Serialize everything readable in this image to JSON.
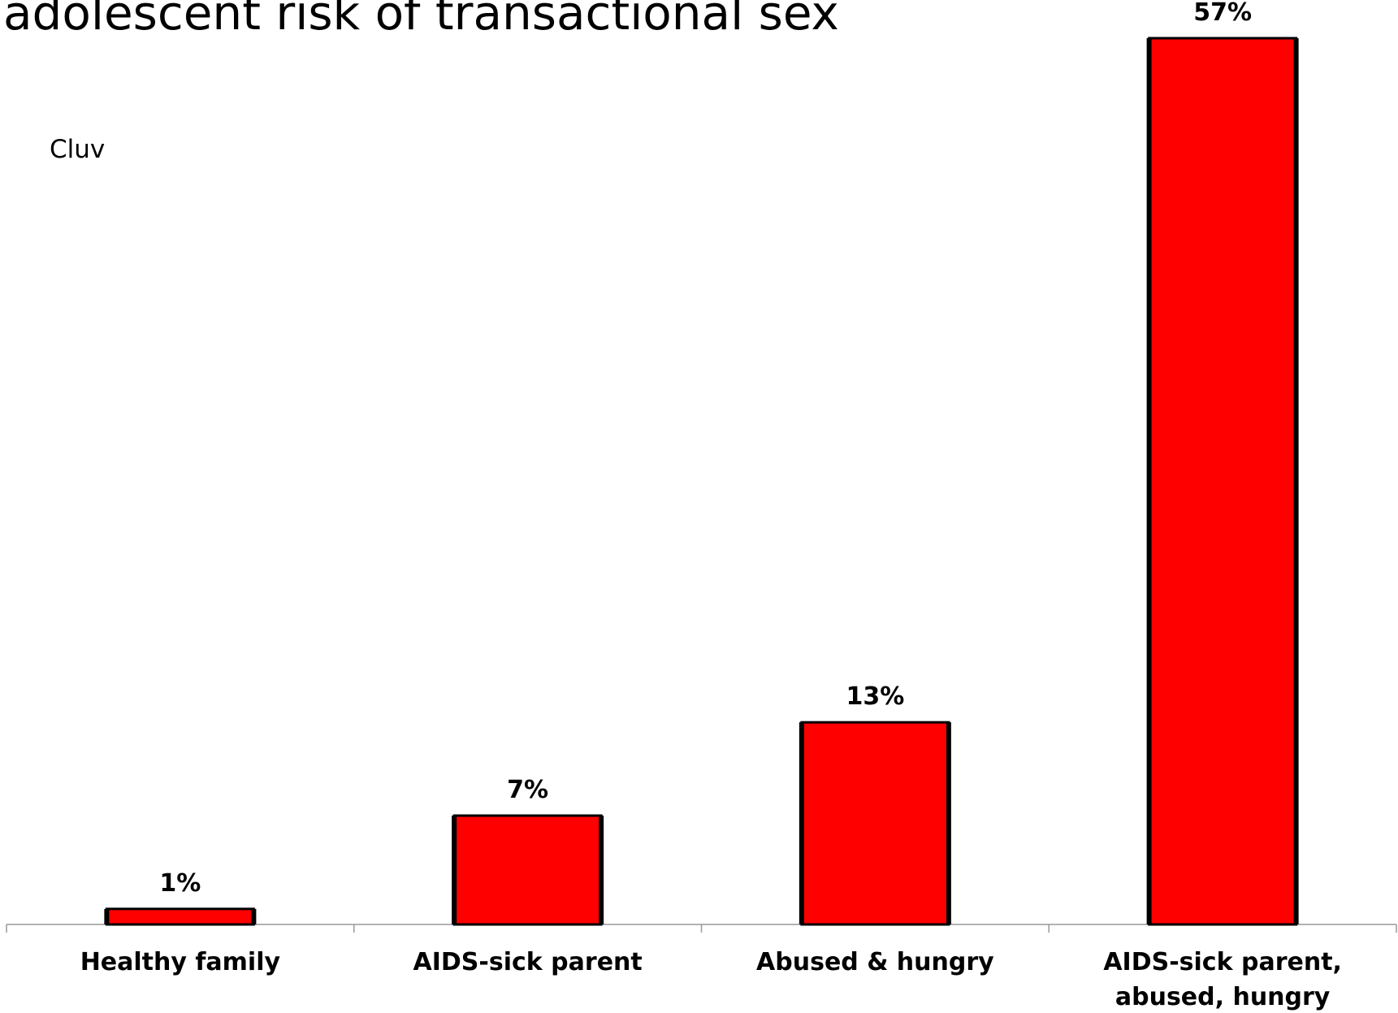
{
  "chart_data": {
    "type": "bar",
    "title": "adolescent risk of transactional sex",
    "annotations": [
      "Cluv"
    ],
    "categories": [
      "Healthy family",
      "AIDS-sick parent",
      "Abused & hungry",
      "AIDS-sick parent, abused, hungry"
    ],
    "values": [
      1,
      7,
      13,
      57
    ],
    "value_labels": [
      "1%",
      "7%",
      "13%",
      "57%"
    ],
    "color": "#ff0000"
  }
}
